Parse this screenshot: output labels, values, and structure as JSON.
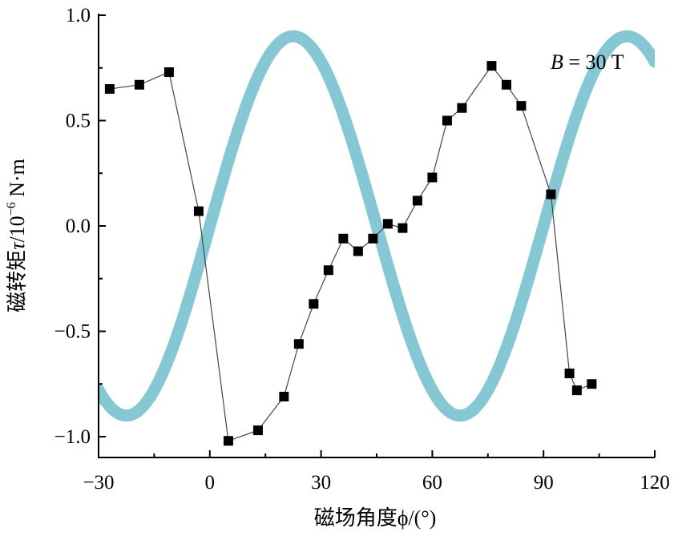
{
  "chart_data": {
    "type": "line",
    "title": "",
    "xlabel": "磁场角度ϕ/(°)",
    "ylabel_prefix": "磁转矩",
    "ylabel_symbol": "τ",
    "ylabel_unit": "/10",
    "ylabel_exp": "−6",
    "ylabel_suffix": " N·m",
    "xlim": [
      -30,
      120
    ],
    "ylim": [
      -1.1,
      1.0
    ],
    "xticks": [
      -30,
      0,
      30,
      60,
      90,
      120
    ],
    "xtick_labels": [
      "−30",
      "0",
      "30",
      "60",
      "90",
      "120"
    ],
    "yticks": [
      1.0,
      0.5,
      0.0,
      -0.5,
      -1.0
    ],
    "ytick_labels": [
      "1.0",
      "0.5",
      "0.0",
      "−0.5",
      "−1.0"
    ],
    "grid": false,
    "annotation": {
      "var": "B",
      "rest": " = 30 T"
    },
    "series": [
      {
        "kind": "fit-curve",
        "color": "#85c8d3",
        "amplitude": 0.9,
        "period_deg": 90,
        "phase_deg": 45,
        "function": "-0.9*sin(2*pi*(x-45)/90)",
        "x_range": [
          -30,
          120
        ]
      },
      {
        "kind": "measured",
        "color": "#000000",
        "marker": "square",
        "x": [
          -27,
          -19,
          -11,
          -3,
          5,
          13,
          20,
          24,
          28,
          32,
          36,
          40,
          44,
          48,
          52,
          56,
          60,
          64,
          68,
          76,
          80,
          84,
          92,
          97,
          99,
          103
        ],
        "y": [
          0.65,
          0.67,
          0.73,
          0.07,
          -1.02,
          -0.97,
          -0.81,
          -0.56,
          -0.37,
          -0.21,
          -0.06,
          -0.12,
          -0.06,
          0.01,
          -0.01,
          0.12,
          0.23,
          0.5,
          0.56,
          0.76,
          0.67,
          0.57,
          0.15,
          -0.7,
          -0.78,
          -0.75
        ]
      }
    ]
  }
}
